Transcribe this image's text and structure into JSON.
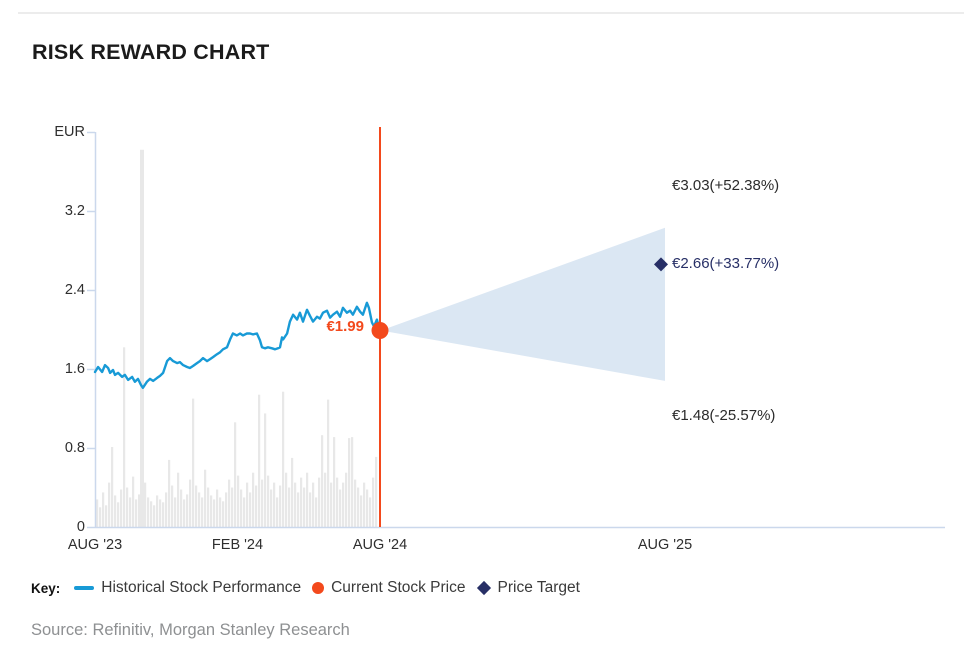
{
  "title": "RISK REWARD CHART",
  "source": "Source: Refinitiv, Morgan Stanley Research",
  "legend": {
    "key_label": "Key:",
    "items": [
      {
        "label": "Historical Stock Performance",
        "marker": "line"
      },
      {
        "label": "Current Stock Price",
        "marker": "dot"
      },
      {
        "label": "Price Target",
        "marker": "diamond"
      }
    ]
  },
  "chart_data": {
    "type": "line",
    "title": "RISK REWARD CHART",
    "ylabel": "EUR",
    "ylim": [
      0,
      4.0
    ],
    "grid": false,
    "legend_position": "bottom",
    "y_axis": {
      "unit": "EUR",
      "tick_values": [
        0,
        0.8,
        1.6,
        2.4,
        3.2
      ],
      "tick_labels": [
        "0",
        "0.8",
        "1.6",
        "2.4",
        "3.2"
      ],
      "top_tick_value": 4.0
    },
    "x_axis": {
      "ticks": [
        {
          "label": "AUG '23",
          "month": 0
        },
        {
          "label": "FEB '24",
          "month": 6
        },
        {
          "label": "AUG '24",
          "month": 12
        },
        {
          "label": "AUG '25",
          "month": 24
        }
      ]
    },
    "series": [
      {
        "name": "Historical Stock Performance",
        "type": "line",
        "x_unit": "fraction of AUG '23 to AUG '24",
        "y_unit": "EUR",
        "points": [
          [
            0,
            1.57
          ],
          [
            0.011,
            1.62
          ],
          [
            0.025,
            1.57
          ],
          [
            0.035,
            1.64
          ],
          [
            0.046,
            1.61
          ],
          [
            0.053,
            1.56
          ],
          [
            0.063,
            1.59
          ],
          [
            0.07,
            1.54
          ],
          [
            0.081,
            1.56
          ],
          [
            0.095,
            1.52
          ],
          [
            0.105,
            1.54
          ],
          [
            0.116,
            1.49
          ],
          [
            0.13,
            1.52
          ],
          [
            0.14,
            1.47
          ],
          [
            0.151,
            1.5
          ],
          [
            0.161,
            1.44
          ],
          [
            0.168,
            1.41
          ],
          [
            0.182,
            1.47
          ],
          [
            0.193,
            1.5
          ],
          [
            0.204,
            1.48
          ],
          [
            0.218,
            1.51
          ],
          [
            0.228,
            1.53
          ],
          [
            0.239,
            1.56
          ],
          [
            0.253,
            1.68
          ],
          [
            0.263,
            1.71
          ],
          [
            0.274,
            1.68
          ],
          [
            0.288,
            1.66
          ],
          [
            0.298,
            1.67
          ],
          [
            0.309,
            1.64
          ],
          [
            0.323,
            1.62
          ],
          [
            0.333,
            1.61
          ],
          [
            0.344,
            1.63
          ],
          [
            0.358,
            1.66
          ],
          [
            0.368,
            1.68
          ],
          [
            0.379,
            1.71
          ],
          [
            0.393,
            1.68
          ],
          [
            0.404,
            1.7
          ],
          [
            0.414,
            1.72
          ],
          [
            0.428,
            1.75
          ],
          [
            0.439,
            1.77
          ],
          [
            0.449,
            1.8
          ],
          [
            0.463,
            1.82
          ],
          [
            0.474,
            1.9
          ],
          [
            0.484,
            1.96
          ],
          [
            0.498,
            1.94
          ],
          [
            0.509,
            1.96
          ],
          [
            0.519,
            1.94
          ],
          [
            0.533,
            1.96
          ],
          [
            0.544,
            1.96
          ],
          [
            0.554,
            1.95
          ],
          [
            0.568,
            1.96
          ],
          [
            0.579,
            1.89
          ],
          [
            0.586,
            1.82
          ],
          [
            0.596,
            1.81
          ],
          [
            0.607,
            1.82
          ],
          [
            0.621,
            1.81
          ],
          [
            0.632,
            1.8
          ],
          [
            0.642,
            1.81
          ],
          [
            0.649,
            1.82
          ],
          [
            0.656,
            1.92
          ],
          [
            0.66,
            1.9
          ],
          [
            0.674,
            1.96
          ],
          [
            0.684,
            2.08
          ],
          [
            0.695,
            2.15
          ],
          [
            0.709,
            2.1
          ],
          [
            0.719,
            2.17
          ],
          [
            0.73,
            2.08
          ],
          [
            0.744,
            2.2
          ],
          [
            0.754,
            2.14
          ],
          [
            0.765,
            2.08
          ],
          [
            0.779,
            2.13
          ],
          [
            0.789,
            2.11
          ],
          [
            0.8,
            2.17
          ],
          [
            0.814,
            2.19
          ],
          [
            0.825,
            2.12
          ],
          [
            0.835,
            2.15
          ],
          [
            0.849,
            2.18
          ],
          [
            0.86,
            2.13
          ],
          [
            0.87,
            2.22
          ],
          [
            0.884,
            2.17
          ],
          [
            0.895,
            2.19
          ],
          [
            0.905,
            2.15
          ],
          [
            0.919,
            2.23
          ],
          [
            0.93,
            2.18
          ],
          [
            0.94,
            2.15
          ],
          [
            0.954,
            2.27
          ],
          [
            0.961,
            2.22
          ],
          [
            0.972,
            2.07
          ],
          [
            0.979,
            2.03
          ],
          [
            0.989,
            2.1
          ],
          [
            0.996,
            2.03
          ],
          [
            1,
            1.99
          ]
        ]
      }
    ],
    "volume_values": [
      0.28,
      0.2,
      0.35,
      0.22,
      0.45,
      0.81,
      0.32,
      0.25,
      0.38,
      1.82,
      0.4,
      0.3,
      0.51,
      0.28,
      0.33,
      3.82,
      0.45,
      0.3,
      0.26,
      0.22,
      0.32,
      0.28,
      0.25,
      0.35,
      0.68,
      0.42,
      0.3,
      0.55,
      0.38,
      0.28,
      0.33,
      0.48,
      1.3,
      0.42,
      0.35,
      0.3,
      0.58,
      0.4,
      0.32,
      0.28,
      0.38,
      0.3,
      0.26,
      0.35,
      0.48,
      0.4,
      1.06,
      0.52,
      0.38,
      0.3,
      0.45,
      0.35,
      0.55,
      0.42,
      1.34,
      0.48,
      1.15,
      0.52,
      0.38,
      0.45,
      0.3,
      0.42,
      1.37,
      0.55,
      0.4,
      0.7,
      0.45,
      0.35,
      0.5,
      0.4,
      0.55,
      0.35,
      0.45,
      0.3,
      0.5,
      0.93,
      0.55,
      1.29,
      0.45,
      0.91,
      0.5,
      0.38,
      0.45,
      0.55,
      0.9,
      0.91,
      0.48,
      0.4,
      0.32,
      0.45,
      0.38,
      0.3,
      0.5,
      0.71
    ],
    "current_price": {
      "label": "€1.99",
      "value": 1.99,
      "date": "AUG '24",
      "date_month": 12
    },
    "price_targets": {
      "date": "AUG '25",
      "date_month": 24,
      "bull": {
        "label": "€3.03(+52.38%)",
        "value": 3.03,
        "pct": "+52.38%"
      },
      "base": {
        "label": "€2.66(+33.77%)",
        "value": 2.66,
        "pct": "+33.77%"
      },
      "bear": {
        "label": "€1.48(-25.57%)",
        "value": 1.48,
        "pct": "-25.57%"
      }
    },
    "colors": {
      "line": "#189ad6",
      "current": "#f3491c",
      "target": "#272f66",
      "cone": "#dbe7f3",
      "volume": "#e8e8e8",
      "axis": "#cbd8ec"
    }
  }
}
